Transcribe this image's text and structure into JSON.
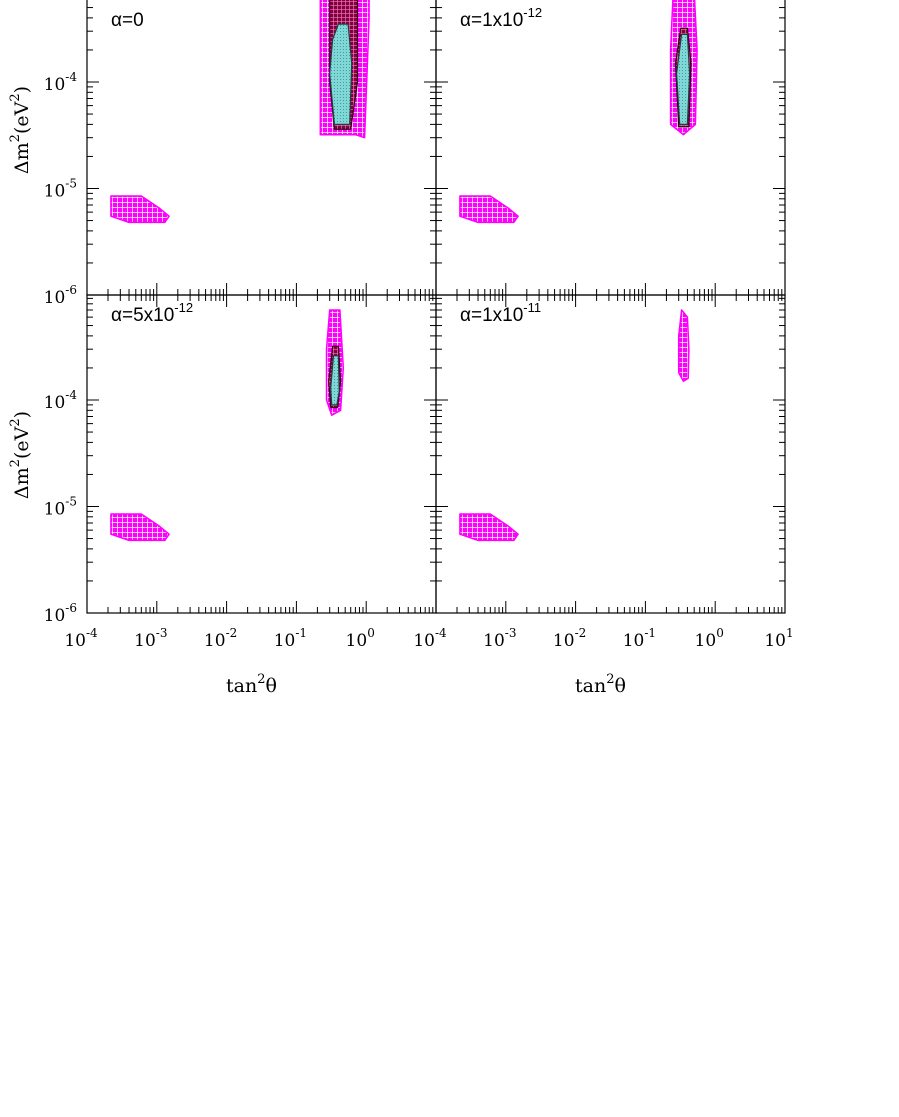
{
  "colors": {
    "region_99cl": "#ff00ff",
    "region_95cl": "#800040",
    "region_90cl": "#7fd8d8",
    "frame": "#000000",
    "background": "#ffffff"
  },
  "chart_data": {
    "type": "contour",
    "x_scale": "log",
    "y_scale": "log",
    "xlim": [
      0.0001,
      10
    ],
    "ylim": [
      1e-06,
      0.0007
    ],
    "shared_x_ticks": [
      {
        "value": 0.0001,
        "base": "10",
        "exp": "-4"
      },
      {
        "value": 0.001,
        "base": "10",
        "exp": "-3"
      },
      {
        "value": 0.01,
        "base": "10",
        "exp": "-2"
      },
      {
        "value": 0.1,
        "base": "10",
        "exp": "-1"
      },
      {
        "value": 1,
        "base": "10",
        "exp": "0"
      },
      {
        "value": 10,
        "base": "10",
        "exp": "1"
      }
    ],
    "shared_y_ticks": [
      {
        "value": 1e-06,
        "base": "10",
        "exp": "-6"
      },
      {
        "value": 1e-05,
        "base": "10",
        "exp": "-5"
      },
      {
        "value": 0.0001,
        "base": "10",
        "exp": "-4"
      }
    ],
    "left_x_ticks": [
      {
        "value": 0.0001,
        "base": "10",
        "exp": "-4"
      },
      {
        "value": 0.001,
        "base": "10",
        "exp": "-3"
      },
      {
        "value": 0.01,
        "base": "10",
        "exp": "-2"
      },
      {
        "value": 0.1,
        "base": "10",
        "exp": "-1"
      },
      {
        "value": 1,
        "base": "10",
        "exp": "0"
      }
    ],
    "xlabel": {
      "base": "tan",
      "sup": "2",
      "tail": "θ"
    },
    "ylabel": {
      "pre": "Δm",
      "sup1": "2",
      "mid": "(eV",
      "sup2": "2",
      "post": ")"
    },
    "panels": [
      {
        "label": {
          "prefix": "α=0",
          "sup": ""
        },
        "regions": [
          {
            "level": "99",
            "shape": "blob",
            "points": [
              [
                0.00022,
                8.5e-06
              ],
              [
                0.0006,
                8.5e-06
              ],
              [
                0.0011,
                6.5e-06
              ],
              [
                0.0015,
                5.5e-06
              ],
              [
                0.0013,
                4.8e-06
              ],
              [
                0.0004,
                4.8e-06
              ],
              [
                0.00022,
                5.5e-06
              ]
            ]
          },
          {
            "level": "99",
            "shape": "blob",
            "points": [
              [
                0.22,
                0.0007
              ],
              [
                1.1,
                0.0007
              ],
              [
                1.1,
                0.0004
              ],
              [
                0.95,
                3e-05
              ],
              [
                0.7,
                3.2e-05
              ],
              [
                0.22,
                3.2e-05
              ],
              [
                0.22,
                0.0001
              ]
            ]
          },
          {
            "level": "95",
            "shape": "blob",
            "points": [
              [
                0.3,
                0.0007
              ],
              [
                0.75,
                0.0007
              ],
              [
                0.75,
                0.0001
              ],
              [
                0.6,
                3.6e-05
              ],
              [
                0.35,
                3.6e-05
              ],
              [
                0.3,
                0.0001
              ]
            ]
          },
          {
            "level": "90",
            "shape": "blob",
            "points": [
              [
                0.4,
                0.00035
              ],
              [
                0.55,
                0.00035
              ],
              [
                0.62,
                0.00015
              ],
              [
                0.58,
                4e-05
              ],
              [
                0.35,
                4e-05
              ],
              [
                0.3,
                0.00012
              ],
              [
                0.33,
                0.00025
              ]
            ]
          }
        ]
      },
      {
        "label": {
          "prefix": "α=1x10",
          "sup": "-12"
        },
        "regions": [
          {
            "level": "99",
            "shape": "blob",
            "points": [
              [
                0.00022,
                8.5e-06
              ],
              [
                0.0006,
                8.5e-06
              ],
              [
                0.0011,
                6.5e-06
              ],
              [
                0.0015,
                5.5e-06
              ],
              [
                0.0013,
                4.8e-06
              ],
              [
                0.0004,
                4.8e-06
              ],
              [
                0.00022,
                5.5e-06
              ]
            ]
          },
          {
            "level": "99",
            "shape": "blob",
            "points": [
              [
                0.25,
                0.0007
              ],
              [
                0.5,
                0.0007
              ],
              [
                0.55,
                0.0002
              ],
              [
                0.52,
                4e-05
              ],
              [
                0.35,
                3.2e-05
              ],
              [
                0.23,
                4e-05
              ],
              [
                0.23,
                0.0002
              ]
            ]
          },
          {
            "level": "95",
            "shape": "blob",
            "points": [
              [
                0.32,
                0.00032
              ],
              [
                0.4,
                0.00032
              ],
              [
                0.45,
                0.00015
              ],
              [
                0.42,
                3.8e-05
              ],
              [
                0.3,
                3.8e-05
              ],
              [
                0.27,
                0.00015
              ]
            ]
          },
          {
            "level": "90",
            "shape": "blob",
            "points": [
              [
                0.33,
                0.00028
              ],
              [
                0.4,
                0.00028
              ],
              [
                0.43,
                0.00012
              ],
              [
                0.4,
                4e-05
              ],
              [
                0.31,
                4e-05
              ],
              [
                0.28,
                0.00012
              ]
            ]
          }
        ]
      },
      {
        "label": {
          "prefix": "α=5x10",
          "sup": "-12"
        },
        "regions": [
          {
            "level": "99",
            "shape": "blob",
            "points": [
              [
                0.00022,
                8.5e-06
              ],
              [
                0.0006,
                8.5e-06
              ],
              [
                0.0011,
                6.5e-06
              ],
              [
                0.0015,
                5.5e-06
              ],
              [
                0.0013,
                4.8e-06
              ],
              [
                0.0004,
                4.8e-06
              ],
              [
                0.00022,
                5.5e-06
              ]
            ]
          },
          {
            "level": "99",
            "shape": "blob",
            "points": [
              [
                0.3,
                0.0007
              ],
              [
                0.42,
                0.0007
              ],
              [
                0.47,
                0.0002
              ],
              [
                0.43,
                8e-05
              ],
              [
                0.32,
                7.2e-05
              ],
              [
                0.27,
                0.0001
              ],
              [
                0.27,
                0.0003
              ]
            ]
          },
          {
            "level": "95",
            "shape": "blob",
            "points": [
              [
                0.33,
                0.00032
              ],
              [
                0.4,
                0.00032
              ],
              [
                0.43,
                0.00015
              ],
              [
                0.39,
                8.5e-05
              ],
              [
                0.31,
                8.5e-05
              ],
              [
                0.29,
                0.00015
              ]
            ]
          },
          {
            "level": "90",
            "shape": "blob",
            "points": [
              [
                0.34,
                0.00026
              ],
              [
                0.4,
                0.00026
              ],
              [
                0.41,
                0.00012
              ],
              [
                0.38,
                9e-05
              ],
              [
                0.32,
                9e-05
              ],
              [
                0.31,
                0.00013
              ]
            ]
          }
        ]
      },
      {
        "label": {
          "prefix": "α=1x10",
          "sup": "-11"
        },
        "regions": [
          {
            "level": "99",
            "shape": "blob",
            "points": [
              [
                0.00022,
                8.5e-06
              ],
              [
                0.0006,
                8.5e-06
              ],
              [
                0.0011,
                6.5e-06
              ],
              [
                0.0015,
                5.5e-06
              ],
              [
                0.0013,
                4.8e-06
              ],
              [
                0.0004,
                4.8e-06
              ],
              [
                0.00022,
                5.5e-06
              ]
            ]
          },
          {
            "level": "99",
            "shape": "blob",
            "points": [
              [
                0.33,
                0.0007
              ],
              [
                0.4,
                0.0006
              ],
              [
                0.42,
                0.0003
              ],
              [
                0.41,
                0.00016
              ],
              [
                0.35,
                0.00015
              ],
              [
                0.3,
                0.00018
              ],
              [
                0.3,
                0.0004
              ]
            ]
          }
        ]
      }
    ]
  }
}
